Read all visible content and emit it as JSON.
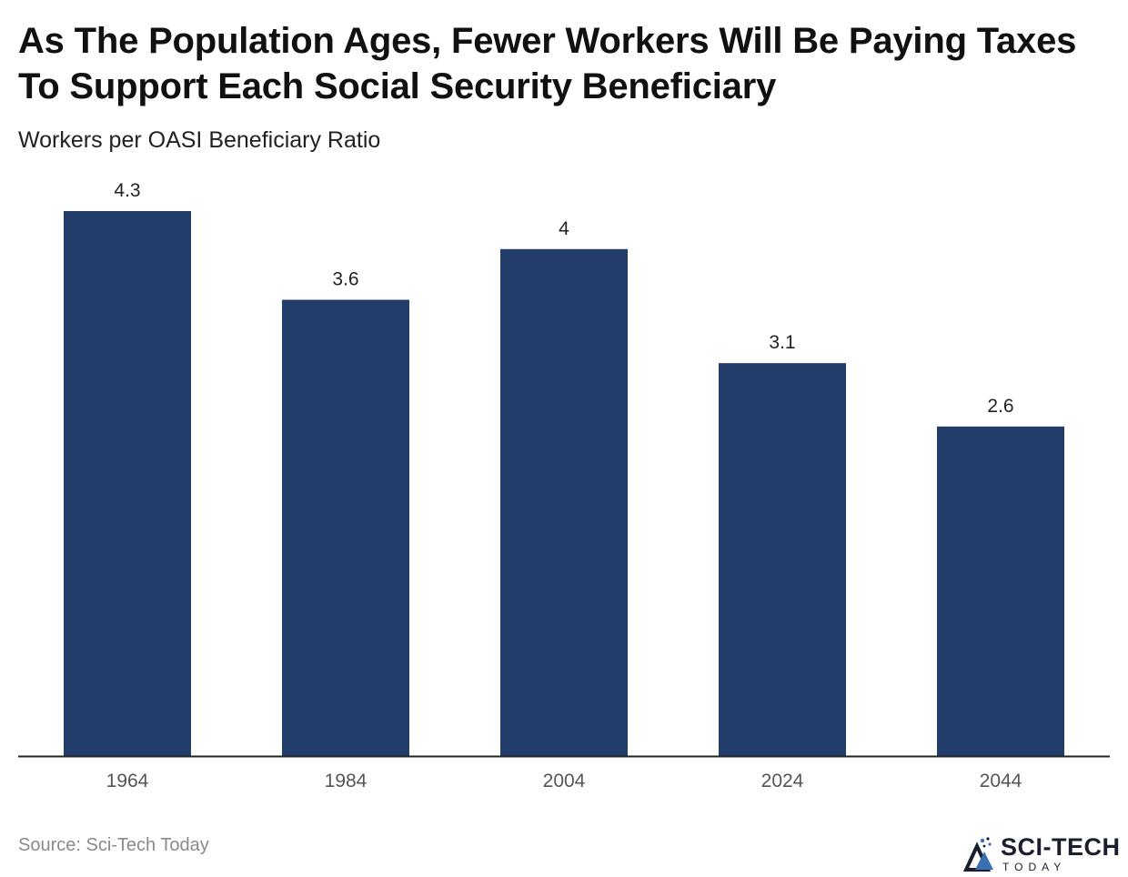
{
  "title": "As The Population Ages, Fewer Workers Will Be Paying Taxes To Support Each Social Security Beneficiary",
  "subtitle": "Workers per OASI Beneficiary Ratio",
  "source": "Source: Sci-Tech Today",
  "logo": {
    "name": "SCI-TECH",
    "tagline": "TODAY"
  },
  "colors": {
    "bar": "#233d6b",
    "axis": "#222222",
    "tick": "#555555",
    "label": "#222222"
  },
  "chart_data": {
    "type": "bar",
    "title": "As The Population Ages, Fewer Workers Will Be Paying Taxes To Support Each Social Security Beneficiary",
    "subtitle": "Workers per OASI Beneficiary Ratio",
    "categories": [
      "1964",
      "1984",
      "2004",
      "2024",
      "2044"
    ],
    "values": [
      4.3,
      3.6,
      4,
      3.1,
      2.6
    ],
    "value_labels": [
      "4.3",
      "3.6",
      "4",
      "3.1",
      "2.6"
    ],
    "xlabel": "",
    "ylabel": "",
    "ylim": [
      0,
      4.3
    ],
    "grid": false,
    "legend": "none"
  }
}
